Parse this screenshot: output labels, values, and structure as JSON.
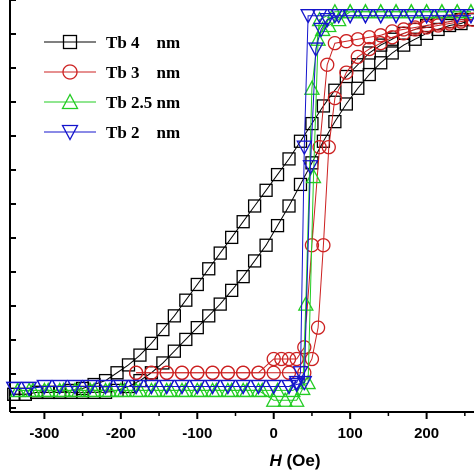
{
  "chart_data": {
    "type": "scatter",
    "xlabel_italic": "H",
    "xlabel_unit": " (Oe)",
    "xlim": [
      -345,
      262
    ],
    "ylim": [
      -1.05,
      1.05
    ],
    "xticks": [
      -300,
      -200,
      -100,
      0,
      100,
      200
    ],
    "tick_labels": [
      "-300",
      "-200",
      "-100",
      "0",
      "100",
      "200"
    ],
    "legend": {
      "placement": "top-left",
      "entries": [
        {
          "label": "Tb 4    nm",
          "color": "#000000",
          "marker": "square"
        },
        {
          "label": "Tb 3    nm",
          "color": "#cc2020",
          "marker": "circle"
        },
        {
          "label": "Tb 2.5 nm",
          "color": "#22cc22",
          "marker": "triangle-up"
        },
        {
          "label": "Tb 2    nm",
          "color": "#1414cc",
          "marker": "triangle-down"
        }
      ]
    },
    "series": [
      {
        "name": "Tb 4    nm",
        "color": "#000000",
        "marker": "square",
        "up": {
          "x": [
            -340,
            -325,
            -310,
            -295,
            -280,
            -265,
            -250,
            -235,
            -220,
            -205,
            -190,
            -175,
            -160,
            -145,
            -130,
            -115,
            -100,
            -85,
            -70,
            -55,
            -40,
            -25,
            -10,
            5,
            20,
            35,
            50,
            65,
            80,
            95,
            110,
            125,
            140,
            155,
            170,
            185,
            200,
            215,
            230,
            245,
            258
          ],
          "y": [
            -0.96,
            -0.96,
            -0.95,
            -0.95,
            -0.95,
            -0.95,
            -0.95,
            -0.95,
            -0.95,
            -0.94,
            -0.92,
            -0.89,
            -0.85,
            -0.8,
            -0.74,
            -0.68,
            -0.62,
            -0.56,
            -0.5,
            -0.43,
            -0.36,
            -0.28,
            -0.2,
            -0.1,
            0.0,
            0.11,
            0.22,
            0.33,
            0.43,
            0.52,
            0.6,
            0.67,
            0.73,
            0.78,
            0.82,
            0.85,
            0.88,
            0.9,
            0.92,
            0.93,
            0.95
          ]
        },
        "down": {
          "x": [
            258,
            245,
            230,
            215,
            200,
            185,
            170,
            155,
            140,
            125,
            110,
            95,
            80,
            65,
            50,
            35,
            20,
            5,
            -10,
            -25,
            -40,
            -55,
            -70,
            -85,
            -100,
            -115,
            -130,
            -145,
            -160,
            -175,
            -190,
            -205,
            -220,
            -235,
            -250,
            -265,
            -280,
            -295,
            -310,
            -325,
            -340
          ],
          "y": [
            0.95,
            0.95,
            0.94,
            0.93,
            0.92,
            0.9,
            0.88,
            0.85,
            0.82,
            0.78,
            0.72,
            0.66,
            0.59,
            0.51,
            0.42,
            0.33,
            0.24,
            0.16,
            0.08,
            0.0,
            -0.08,
            -0.16,
            -0.24,
            -0.32,
            -0.4,
            -0.48,
            -0.56,
            -0.63,
            -0.7,
            -0.76,
            -0.81,
            -0.85,
            -0.89,
            -0.91,
            -0.93,
            -0.94,
            -0.95,
            -0.95,
            -0.95,
            -0.96,
            -0.96
          ]
        }
      },
      {
        "name": "Tb 3    nm",
        "color": "#cc2020",
        "marker": "circle",
        "up": {
          "x": [
            -180,
            -160,
            -140,
            -120,
            -100,
            -80,
            -60,
            -40,
            -20,
            0,
            20,
            40,
            50,
            58,
            65,
            72,
            80,
            95,
            110,
            125,
            140,
            155,
            170,
            185,
            200,
            215,
            230,
            245,
            260
          ],
          "y": [
            -0.85,
            -0.85,
            -0.85,
            -0.85,
            -0.85,
            -0.85,
            -0.85,
            -0.85,
            -0.85,
            -0.85,
            -0.85,
            -0.85,
            -0.78,
            -0.62,
            -0.2,
            0.3,
            0.55,
            0.68,
            0.76,
            0.8,
            0.83,
            0.86,
            0.88,
            0.9,
            0.91,
            0.92,
            0.93,
            0.94,
            0.95
          ]
        },
        "down": {
          "x": [
            260,
            245,
            230,
            215,
            200,
            185,
            170,
            155,
            140,
            125,
            110,
            95,
            80,
            70,
            60,
            50,
            40,
            30,
            20,
            10,
            0,
            -20,
            -40,
            -60,
            -80,
            -100,
            -120,
            -140,
            -160,
            -180
          ],
          "y": [
            0.95,
            0.95,
            0.94,
            0.93,
            0.92,
            0.91,
            0.9,
            0.89,
            0.87,
            0.86,
            0.85,
            0.84,
            0.83,
            0.72,
            0.3,
            -0.2,
            -0.72,
            -0.78,
            -0.78,
            -0.78,
            -0.78,
            -0.85,
            -0.85,
            -0.85,
            -0.85,
            -0.85,
            -0.85,
            -0.85,
            -0.85,
            -0.85
          ]
        }
      },
      {
        "name": "Tb 2.5 nm",
        "color": "#22cc22",
        "marker": "triangle-up",
        "up": {
          "x": [
            -335,
            -315,
            -295,
            -275,
            -255,
            -235,
            -215,
            -195,
            -175,
            -155,
            -135,
            -115,
            -95,
            -75,
            -55,
            -35,
            -15,
            5,
            25,
            45,
            52,
            58,
            64,
            72,
            85,
            100,
            120,
            140,
            160,
            180,
            200,
            220,
            240,
            258
          ],
          "y": [
            -0.94,
            -0.94,
            -0.94,
            -0.94,
            -0.94,
            -0.94,
            -0.94,
            -0.94,
            -0.94,
            -0.94,
            -0.94,
            -0.94,
            -0.94,
            -0.94,
            -0.94,
            -0.94,
            -0.94,
            -0.94,
            -0.94,
            -0.9,
            0.15,
            0.85,
            0.9,
            0.92,
            0.95,
            0.99,
            0.99,
            0.99,
            0.99,
            0.99,
            0.99,
            0.99,
            0.99,
            0.99
          ]
        },
        "down": {
          "x": [
            258,
            240,
            220,
            200,
            180,
            160,
            140,
            120,
            100,
            80,
            60,
            50,
            42,
            38,
            30,
            15,
            0,
            -20,
            -40,
            -60,
            -80,
            -100,
            -120,
            -140,
            -160,
            -180,
            -200,
            -220,
            -240,
            -260,
            -280,
            -300,
            -320,
            -335
          ],
          "y": [
            0.99,
            0.99,
            0.99,
            0.99,
            0.99,
            0.99,
            0.99,
            0.99,
            0.99,
            0.99,
            0.95,
            0.6,
            -0.5,
            -0.93,
            -0.99,
            -0.99,
            -0.99,
            -0.94,
            -0.94,
            -0.94,
            -0.94,
            -0.94,
            -0.94,
            -0.94,
            -0.94,
            -0.94,
            -0.94,
            -0.94,
            -0.94,
            -0.94,
            -0.94,
            -0.94,
            -0.94,
            -0.94
          ]
        }
      },
      {
        "name": "Tb 2    nm",
        "color": "#1414cc",
        "marker": "triangle-down",
        "up": {
          "x": [
            -340,
            -320,
            -300,
            -280,
            -260,
            -240,
            -220,
            -200,
            -180,
            -160,
            -140,
            -120,
            -100,
            -80,
            -60,
            -40,
            -20,
            0,
            20,
            30,
            40,
            48,
            55,
            62,
            70,
            85,
            100,
            120,
            140,
            160,
            180,
            200,
            220,
            240,
            258
          ],
          "y": [
            -0.93,
            -0.93,
            -0.92,
            -0.92,
            -0.92,
            -0.92,
            -0.92,
            -0.92,
            -0.92,
            -0.92,
            -0.92,
            -0.92,
            -0.92,
            -0.92,
            -0.92,
            -0.92,
            -0.92,
            -0.92,
            -0.92,
            -0.91,
            -0.9,
            0.2,
            0.8,
            0.9,
            0.95,
            0.97,
            0.97,
            0.97,
            0.97,
            0.97,
            0.97,
            0.97,
            0.97,
            0.97,
            0.97
          ]
        },
        "down": {
          "x": [
            258,
            240,
            220,
            200,
            180,
            160,
            140,
            120,
            100,
            80,
            60,
            45,
            40,
            35,
            30,
            20,
            0,
            -20,
            -40,
            -60,
            -80,
            -100,
            -120,
            -140,
            -160,
            -180,
            -200,
            -220,
            -240,
            -260,
            -280,
            -300,
            -320,
            -340
          ],
          "y": [
            0.97,
            0.97,
            0.97,
            0.97,
            0.97,
            0.97,
            0.97,
            0.97,
            0.97,
            0.97,
            0.97,
            0.97,
            0.3,
            -0.85,
            -0.9,
            -0.92,
            -0.92,
            -0.92,
            -0.92,
            -0.92,
            -0.92,
            -0.92,
            -0.92,
            -0.92,
            -0.92,
            -0.92,
            -0.92,
            -0.92,
            -0.92,
            -0.92,
            -0.92,
            -0.92,
            -0.93,
            -0.93
          ]
        }
      }
    ]
  }
}
